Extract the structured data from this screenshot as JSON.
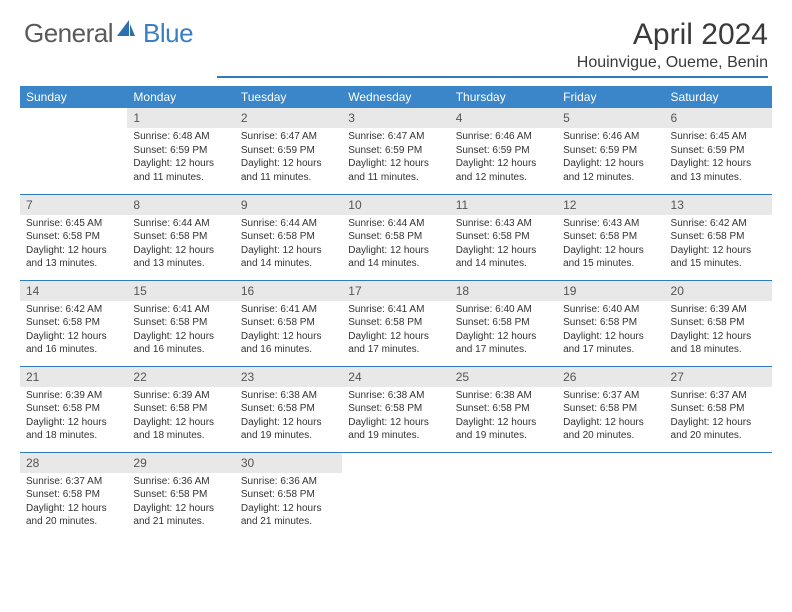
{
  "logo": {
    "part1": "General",
    "part2": "Blue"
  },
  "title": "April 2024",
  "location": "Houinvigue, Oueme, Benin",
  "colors": {
    "header_bg": "#3a86c8",
    "header_text": "#ffffff",
    "rule": "#2f7bbf",
    "daynum_bg": "#e8e8e8",
    "text": "#262626",
    "logo_gray": "#5a5a5a",
    "logo_blue": "#3a7fc4"
  },
  "daysOfWeek": [
    "Sunday",
    "Monday",
    "Tuesday",
    "Wednesday",
    "Thursday",
    "Friday",
    "Saturday"
  ],
  "weeks": [
    [
      {
        "n": "",
        "sr": "",
        "ss": "",
        "dl": ""
      },
      {
        "n": "1",
        "sr": "6:48 AM",
        "ss": "6:59 PM",
        "dl": "12 hours and 11 minutes."
      },
      {
        "n": "2",
        "sr": "6:47 AM",
        "ss": "6:59 PM",
        "dl": "12 hours and 11 minutes."
      },
      {
        "n": "3",
        "sr": "6:47 AM",
        "ss": "6:59 PM",
        "dl": "12 hours and 11 minutes."
      },
      {
        "n": "4",
        "sr": "6:46 AM",
        "ss": "6:59 PM",
        "dl": "12 hours and 12 minutes."
      },
      {
        "n": "5",
        "sr": "6:46 AM",
        "ss": "6:59 PM",
        "dl": "12 hours and 12 minutes."
      },
      {
        "n": "6",
        "sr": "6:45 AM",
        "ss": "6:59 PM",
        "dl": "12 hours and 13 minutes."
      }
    ],
    [
      {
        "n": "7",
        "sr": "6:45 AM",
        "ss": "6:58 PM",
        "dl": "12 hours and 13 minutes."
      },
      {
        "n": "8",
        "sr": "6:44 AM",
        "ss": "6:58 PM",
        "dl": "12 hours and 13 minutes."
      },
      {
        "n": "9",
        "sr": "6:44 AM",
        "ss": "6:58 PM",
        "dl": "12 hours and 14 minutes."
      },
      {
        "n": "10",
        "sr": "6:44 AM",
        "ss": "6:58 PM",
        "dl": "12 hours and 14 minutes."
      },
      {
        "n": "11",
        "sr": "6:43 AM",
        "ss": "6:58 PM",
        "dl": "12 hours and 14 minutes."
      },
      {
        "n": "12",
        "sr": "6:43 AM",
        "ss": "6:58 PM",
        "dl": "12 hours and 15 minutes."
      },
      {
        "n": "13",
        "sr": "6:42 AM",
        "ss": "6:58 PM",
        "dl": "12 hours and 15 minutes."
      }
    ],
    [
      {
        "n": "14",
        "sr": "6:42 AM",
        "ss": "6:58 PM",
        "dl": "12 hours and 16 minutes."
      },
      {
        "n": "15",
        "sr": "6:41 AM",
        "ss": "6:58 PM",
        "dl": "12 hours and 16 minutes."
      },
      {
        "n": "16",
        "sr": "6:41 AM",
        "ss": "6:58 PM",
        "dl": "12 hours and 16 minutes."
      },
      {
        "n": "17",
        "sr": "6:41 AM",
        "ss": "6:58 PM",
        "dl": "12 hours and 17 minutes."
      },
      {
        "n": "18",
        "sr": "6:40 AM",
        "ss": "6:58 PM",
        "dl": "12 hours and 17 minutes."
      },
      {
        "n": "19",
        "sr": "6:40 AM",
        "ss": "6:58 PM",
        "dl": "12 hours and 17 minutes."
      },
      {
        "n": "20",
        "sr": "6:39 AM",
        "ss": "6:58 PM",
        "dl": "12 hours and 18 minutes."
      }
    ],
    [
      {
        "n": "21",
        "sr": "6:39 AM",
        "ss": "6:58 PM",
        "dl": "12 hours and 18 minutes."
      },
      {
        "n": "22",
        "sr": "6:39 AM",
        "ss": "6:58 PM",
        "dl": "12 hours and 18 minutes."
      },
      {
        "n": "23",
        "sr": "6:38 AM",
        "ss": "6:58 PM",
        "dl": "12 hours and 19 minutes."
      },
      {
        "n": "24",
        "sr": "6:38 AM",
        "ss": "6:58 PM",
        "dl": "12 hours and 19 minutes."
      },
      {
        "n": "25",
        "sr": "6:38 AM",
        "ss": "6:58 PM",
        "dl": "12 hours and 19 minutes."
      },
      {
        "n": "26",
        "sr": "6:37 AM",
        "ss": "6:58 PM",
        "dl": "12 hours and 20 minutes."
      },
      {
        "n": "27",
        "sr": "6:37 AM",
        "ss": "6:58 PM",
        "dl": "12 hours and 20 minutes."
      }
    ],
    [
      {
        "n": "28",
        "sr": "6:37 AM",
        "ss": "6:58 PM",
        "dl": "12 hours and 20 minutes."
      },
      {
        "n": "29",
        "sr": "6:36 AM",
        "ss": "6:58 PM",
        "dl": "12 hours and 21 minutes."
      },
      {
        "n": "30",
        "sr": "6:36 AM",
        "ss": "6:58 PM",
        "dl": "12 hours and 21 minutes."
      },
      {
        "n": "",
        "sr": "",
        "ss": "",
        "dl": ""
      },
      {
        "n": "",
        "sr": "",
        "ss": "",
        "dl": ""
      },
      {
        "n": "",
        "sr": "",
        "ss": "",
        "dl": ""
      },
      {
        "n": "",
        "sr": "",
        "ss": "",
        "dl": ""
      }
    ]
  ],
  "labels": {
    "sunrise": "Sunrise:",
    "sunset": "Sunset:",
    "daylight": "Daylight:"
  }
}
